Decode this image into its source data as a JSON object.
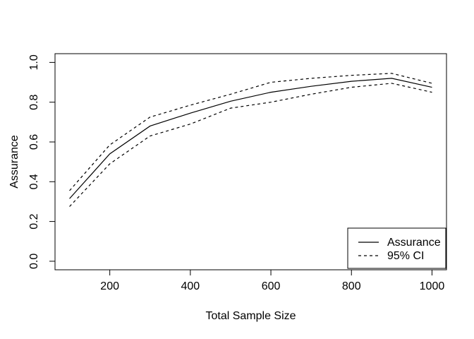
{
  "figure": {
    "background": "#ffffff",
    "foreground": "#000000"
  },
  "chart_data": {
    "type": "line",
    "title": "",
    "xlabel": "Total Sample Size",
    "ylabel": "Assurance",
    "x": [
      100,
      200,
      300,
      400,
      500,
      600,
      700,
      800,
      900,
      1000
    ],
    "series": [
      {
        "name": "Assurance",
        "line_style": "solid",
        "values": [
          0.315,
          0.54,
          0.68,
          0.745,
          0.805,
          0.85,
          0.88,
          0.905,
          0.92,
          0.875
        ]
      },
      {
        "name": "95% CI upper",
        "line_style": "dashed",
        "values": [
          0.355,
          0.585,
          0.725,
          0.785,
          0.84,
          0.9,
          0.92,
          0.935,
          0.945,
          0.895
        ]
      },
      {
        "name": "95% CI lower",
        "line_style": "dashed",
        "values": [
          0.275,
          0.49,
          0.63,
          0.69,
          0.77,
          0.8,
          0.84,
          0.875,
          0.895,
          0.85
        ]
      }
    ],
    "xticks": {
      "values": [
        200,
        400,
        600,
        800,
        1000
      ],
      "labels": [
        "200",
        "400",
        "600",
        "800",
        "1000"
      ]
    },
    "yticks": {
      "values": [
        0.0,
        0.2,
        0.4,
        0.6,
        0.8,
        1.0
      ],
      "labels": [
        "0.0",
        "0.2",
        "0.4",
        "0.6",
        "0.8",
        "1.0"
      ]
    },
    "xlim": [
      64,
      1036
    ],
    "ylim": [
      -0.043,
      1.044
    ],
    "grid": false,
    "legend": {
      "position": "bottomright",
      "entries": [
        {
          "label": "Assurance",
          "line_style": "solid"
        },
        {
          "label": "95% CI",
          "line_style": "dashed"
        }
      ]
    }
  }
}
